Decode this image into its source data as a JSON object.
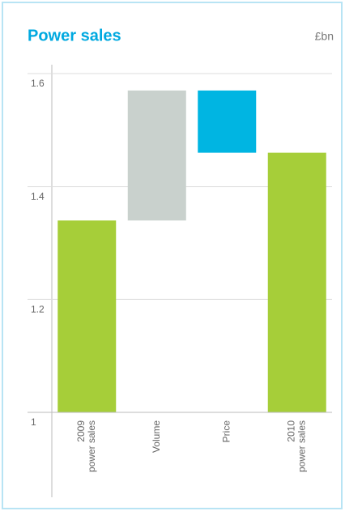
{
  "chart_data": {
    "type": "waterfall",
    "title": "Power sales",
    "unit": "£bn",
    "categories": [
      [
        "2009",
        "power sales"
      ],
      [
        "Volume"
      ],
      [
        "Price"
      ],
      [
        "2010",
        "power sales"
      ]
    ],
    "values": [
      1.34,
      0.23,
      -0.11,
      1.46
    ],
    "bar_types": [
      "total",
      "delta",
      "delta",
      "total"
    ],
    "colors": [
      "#a6ce39",
      "#c9d1cd",
      "#00b5e2",
      "#a6ce39"
    ],
    "ylim": [
      1.0,
      1.6
    ],
    "yticks": [
      1.0,
      1.2,
      1.4,
      1.6
    ],
    "grid": true
  }
}
